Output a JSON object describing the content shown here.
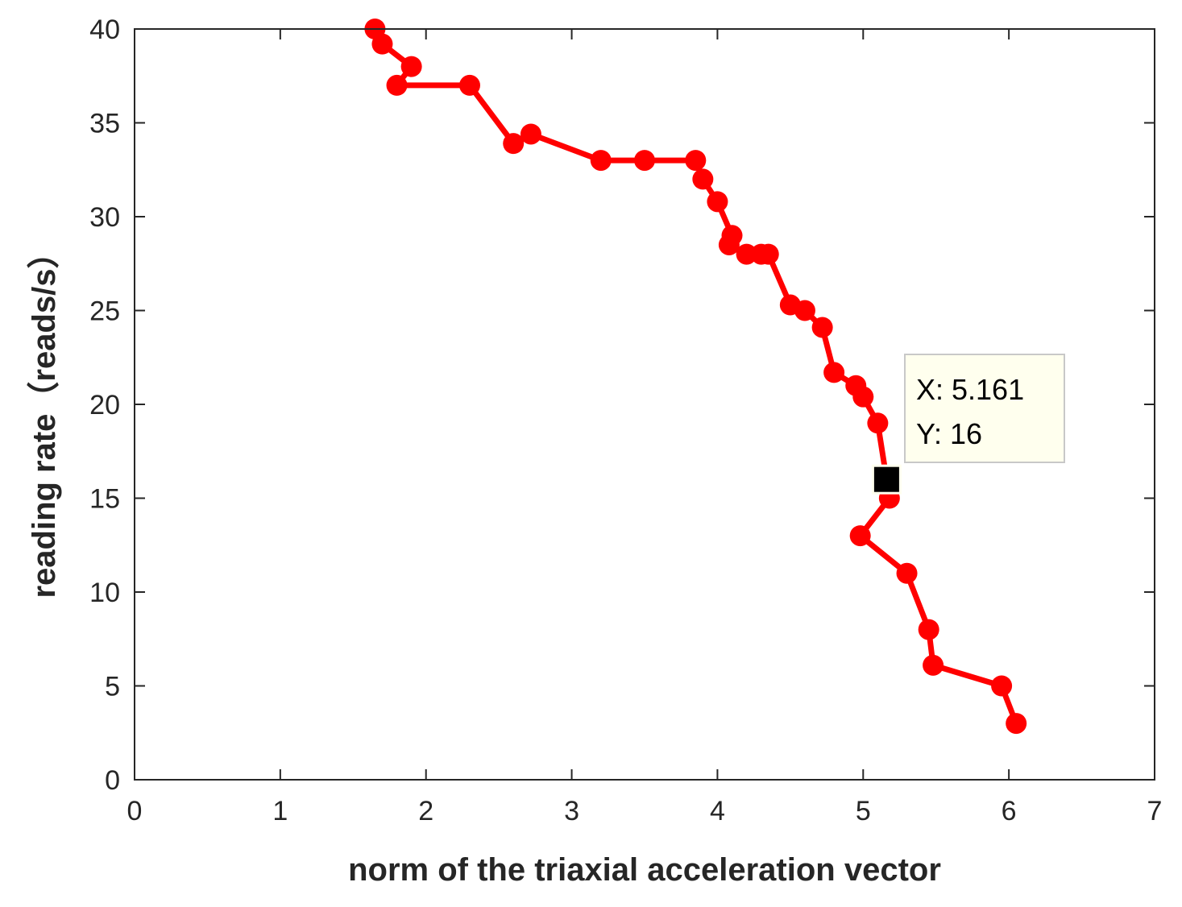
{
  "chart_data": {
    "type": "line",
    "title": "",
    "xlabel": "norm of the triaxial acceleration vector",
    "ylabel": "reading rate（reads/s）",
    "xlim": [
      0,
      7
    ],
    "ylim": [
      0,
      40
    ],
    "xticks": [
      0,
      1,
      2,
      3,
      4,
      5,
      6,
      7
    ],
    "yticks": [
      0,
      5,
      10,
      15,
      20,
      25,
      30,
      35,
      40
    ],
    "grid": false,
    "series": [
      {
        "name": "reading rate",
        "color": "#ff0000",
        "marker": "filled-circle",
        "x": [
          1.65,
          1.7,
          1.9,
          1.8,
          2.3,
          2.6,
          2.72,
          3.2,
          3.5,
          3.85,
          3.9,
          4.0,
          4.1,
          4.08,
          4.2,
          4.3,
          4.35,
          4.5,
          4.6,
          4.72,
          4.8,
          4.95,
          5.0,
          5.1,
          5.161,
          5.18,
          4.98,
          5.3,
          5.45,
          5.48,
          5.95,
          6.05
        ],
        "y": [
          40,
          39.2,
          38,
          37,
          37,
          33.9,
          34.4,
          33,
          33,
          33,
          32,
          30.8,
          29,
          28.5,
          28,
          28,
          28,
          25.3,
          25,
          24.1,
          21.7,
          21,
          20.4,
          19,
          16,
          15,
          13,
          11,
          8,
          6.1,
          5,
          3
        ]
      }
    ],
    "datatip": {
      "x_text": "X: 5.161",
      "y_text": "Y: 16",
      "x": 5.161,
      "y": 16
    }
  },
  "colors": {
    "line": "#ff0000",
    "axis": "#262626",
    "tip_background": "#ffffee",
    "tip_border": "#c8c8c8",
    "tip_marker": "#000000"
  }
}
